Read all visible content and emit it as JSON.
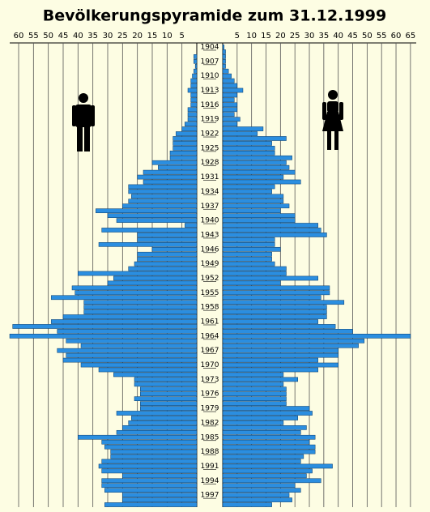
{
  "chart_data": {
    "type": "pyramid",
    "title": "Bevölkerungspyramide zum 31.12.1999",
    "categories": [
      "1904",
      null,
      null,
      "1907",
      null,
      null,
      "1910",
      null,
      null,
      "1913",
      null,
      null,
      "1916",
      null,
      null,
      "1919",
      null,
      null,
      "1922",
      null,
      null,
      "1925",
      null,
      null,
      "1928",
      null,
      null,
      "1931",
      null,
      null,
      "1934",
      null,
      null,
      "1937",
      null,
      null,
      "1940",
      null,
      null,
      "1943",
      null,
      null,
      "1946",
      null,
      null,
      "1949",
      null,
      null,
      "1952",
      null,
      null,
      "1955",
      null,
      null,
      "1958",
      null,
      null,
      "1961",
      null,
      null,
      "1964",
      null,
      null,
      "1967",
      null,
      null,
      "1970",
      null,
      null,
      "1973",
      null,
      null,
      "1976",
      null,
      null,
      "1979",
      null,
      null,
      "1982",
      null,
      null,
      "1985",
      null,
      null,
      "1988",
      null,
      null,
      "1991",
      null,
      null,
      "1994",
      null,
      null,
      "1997",
      null,
      null
    ],
    "series": [
      {
        "color": "#2b8ee0",
        "xlim": [
          0,
          63
        ],
        "xticks": [
          5,
          10,
          15,
          20,
          25,
          30,
          35,
          40,
          45,
          50,
          55,
          60
        ],
        "values": [
          0,
          0,
          1,
          1,
          0.5,
          1,
          1.5,
          2,
          2,
          3,
          2,
          2,
          2,
          3,
          3,
          3,
          4,
          5,
          7,
          8,
          8,
          8,
          9,
          9,
          15,
          13,
          18,
          20,
          18,
          23,
          23,
          22,
          23,
          25,
          34,
          30,
          27,
          4,
          32,
          20,
          20,
          33,
          15,
          20,
          20,
          21,
          23,
          40,
          28,
          30,
          42,
          41,
          49,
          38,
          38,
          38,
          45,
          49,
          62,
          47,
          63,
          44,
          39,
          47,
          44,
          45,
          39,
          33,
          28,
          21,
          21,
          19,
          19,
          21,
          19,
          19,
          27,
          22,
          23,
          25,
          27,
          40,
          32,
          31,
          29,
          29,
          32,
          33,
          32,
          25,
          32,
          32,
          31,
          25,
          25,
          31
        ]
      },
      {
        "color": "#2b8ee0",
        "xlim": [
          0,
          67
        ],
        "xticks": [
          5,
          10,
          15,
          20,
          25,
          30,
          35,
          40,
          45,
          50,
          55,
          60,
          65
        ],
        "values": [
          0.5,
          1,
          1,
          1,
          1,
          2,
          3,
          4,
          5,
          7,
          5,
          4,
          5,
          5,
          4,
          6,
          5,
          14,
          12,
          22,
          17,
          18,
          18,
          24,
          22,
          23,
          25,
          21,
          27,
          18,
          17,
          21,
          21,
          23,
          20,
          25,
          25,
          33,
          34,
          36,
          18,
          18,
          20,
          17,
          17,
          18,
          22,
          22,
          33,
          20,
          37,
          37,
          34,
          42,
          36,
          36,
          36,
          33,
          39,
          45,
          65,
          49,
          47,
          40,
          40,
          33,
          40,
          33,
          21,
          26,
          21,
          22,
          22,
          22,
          22,
          30,
          31,
          26,
          21,
          29,
          27,
          32,
          30,
          32,
          32,
          28,
          27,
          38,
          31,
          29,
          34,
          25,
          27,
          23,
          24,
          17
        ]
      }
    ]
  }
}
